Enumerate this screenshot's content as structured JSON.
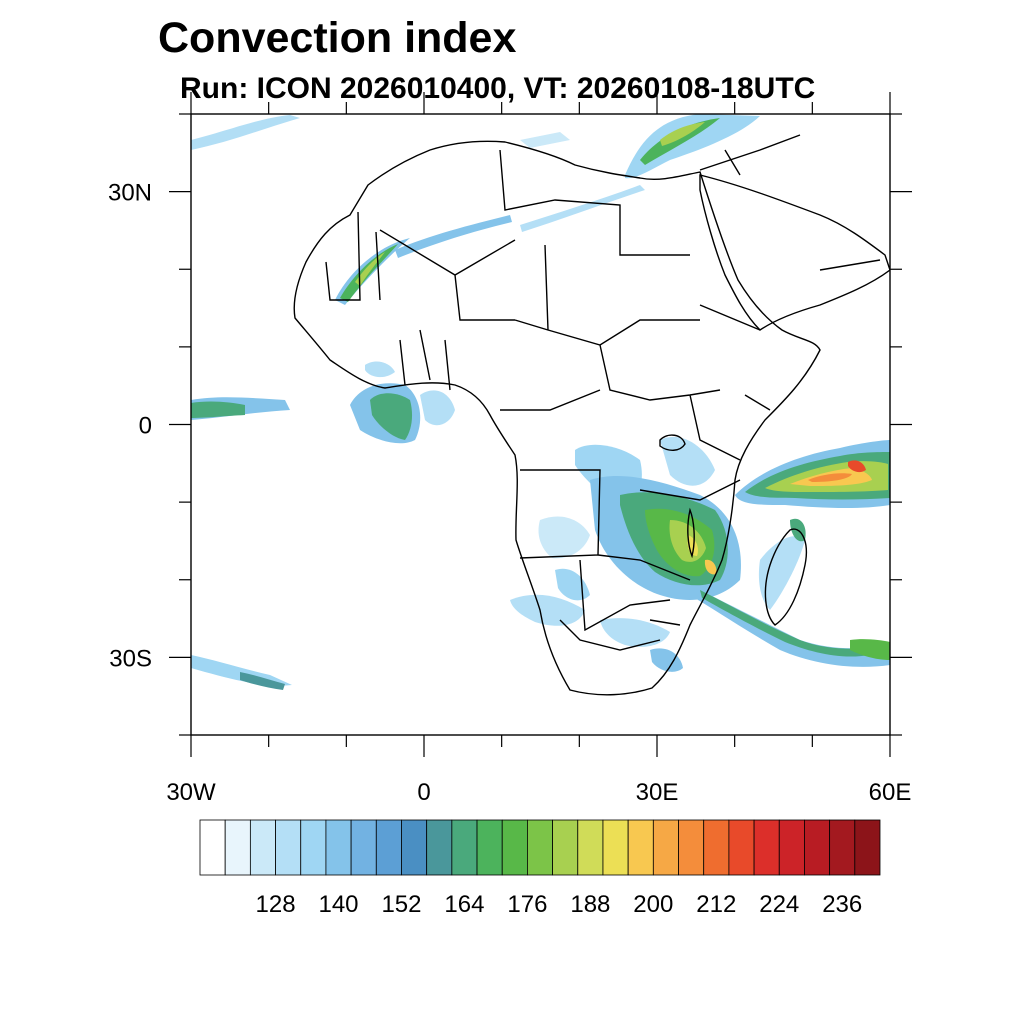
{
  "title": "Convection index",
  "subtitle": "Run: ICON 2026010400,  VT: 20260108-18UTC",
  "map": {
    "lon_range": [
      -30,
      60
    ],
    "lat_range": [
      -40,
      40
    ],
    "lon_ticks": [
      {
        "value": -30,
        "label": "30W"
      },
      {
        "value": 0,
        "label": "0"
      },
      {
        "value": 30,
        "label": "30E"
      },
      {
        "value": 60,
        "label": "60E"
      }
    ],
    "lat_ticks": [
      {
        "value": 30,
        "label": "30N"
      },
      {
        "value": 0,
        "label": "0"
      },
      {
        "value": -30,
        "label": "30S"
      }
    ],
    "minor_lon_step": 10,
    "minor_lat_step": 10
  },
  "colorbar": {
    "labels": [
      "128",
      "140",
      "152",
      "164",
      "176",
      "188",
      "200",
      "212",
      "224",
      "236"
    ],
    "colors": [
      "#ffffff",
      "#e8f5fc",
      "#cbe9f8",
      "#b4dff6",
      "#9fd6f3",
      "#84c3ea",
      "#72b2e2",
      "#5c9fd5",
      "#4a8fc3",
      "#4a979b",
      "#4aa97c",
      "#4cb35c",
      "#58b848",
      "#7cc448",
      "#a8d050",
      "#d0dc58",
      "#ecdf55",
      "#f8c850",
      "#f6a845",
      "#f48d3b",
      "#ef6d2f",
      "#e84a2a",
      "#dc2f2a",
      "#cc2328",
      "#b81c23",
      "#a3191f",
      "#8c1419"
    ]
  }
}
